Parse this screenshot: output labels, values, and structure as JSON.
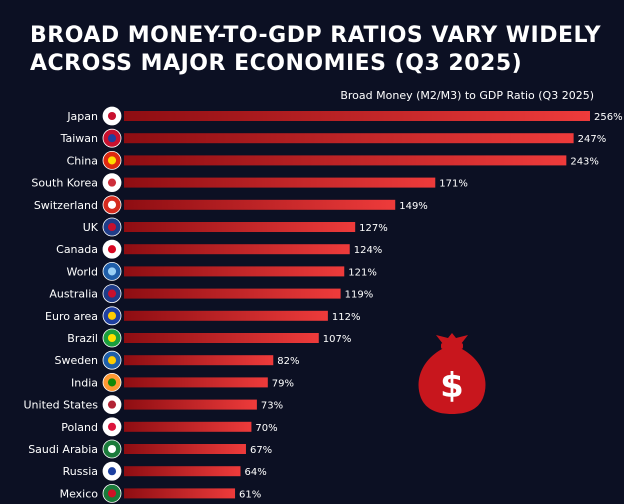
{
  "title": {
    "line1": "BROAD MONEY-TO-GDP RATIOS VARY WIDELY",
    "line2": "ACROSS MAJOR ECONOMIES (Q3 2025)"
  },
  "subtitle": "Broad Money (M2/M3) to GDP Ratio (Q3 2025)",
  "colors": {
    "background": "#0c1023",
    "bar_start": "#8e0d12",
    "bar_end": "#ee3b3b",
    "money_bag": "#c8161d"
  },
  "icons": {
    "decoration": "money-bag-icon",
    "row_marker": "country-flag-icon"
  },
  "chart_data": {
    "type": "bar",
    "orientation": "horizontal",
    "categories": [
      "Japan",
      "Taiwan",
      "China",
      "South Korea",
      "Switzerland",
      "UK",
      "Canada",
      "World",
      "Australia",
      "Euro area",
      "Brazil",
      "Sweden",
      "India",
      "United States",
      "Poland",
      "Saudi Arabia",
      "Russia",
      "Mexico"
    ],
    "values": [
      256,
      247,
      243,
      171,
      149,
      127,
      124,
      121,
      119,
      112,
      107,
      82,
      79,
      73,
      70,
      67,
      64,
      61
    ],
    "value_labels": [
      "256%",
      "247%",
      "243%",
      "171%",
      "149%",
      "127%",
      "124%",
      "121%",
      "119%",
      "112%",
      "107%",
      "82%",
      "79%",
      "73%",
      "70%",
      "67%",
      "64%",
      "61%"
    ],
    "unit": "%",
    "xlim": [
      0,
      256
    ],
    "grid": false,
    "legend": "none"
  }
}
